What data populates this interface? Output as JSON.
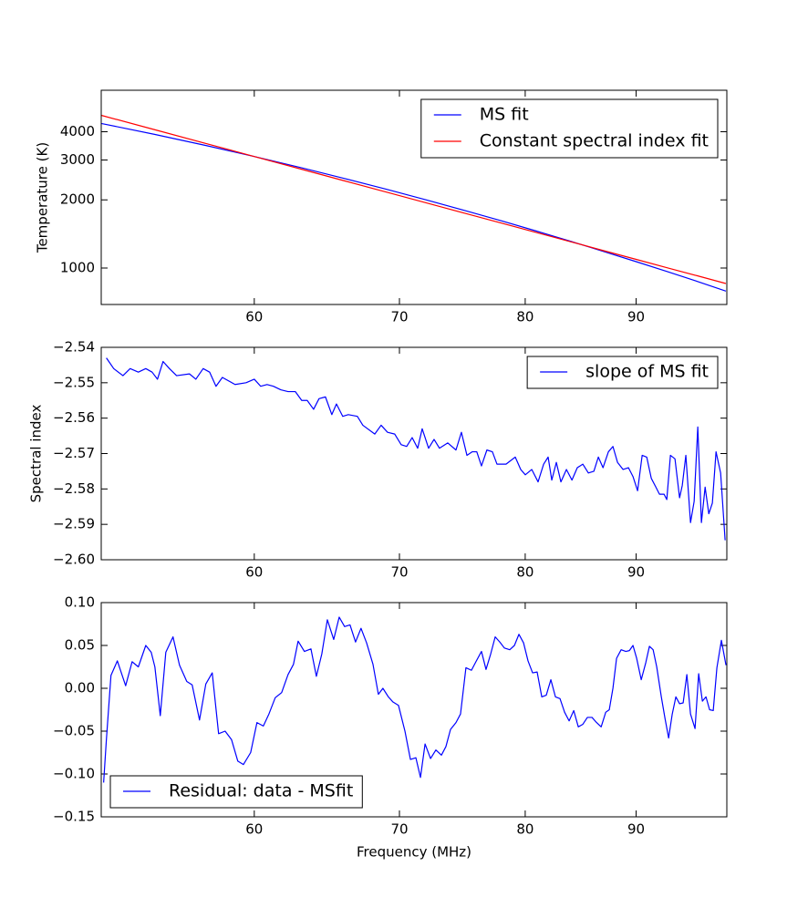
{
  "chart_data": [
    {
      "type": "line",
      "x_scale": "log",
      "y_scale": "log",
      "ylabel": "Temperature (K)",
      "legend": "upper right",
      "x": [
        51,
        54,
        57,
        60,
        63,
        66,
        69,
        72,
        75,
        78,
        81,
        84,
        87,
        90,
        93,
        96,
        99
      ],
      "series": [
        {
          "name": "MS fit",
          "color": "#0000ff",
          "values": [
            4352,
            3890,
            3476,
            3108,
            2781,
            2489,
            2231,
            2001,
            1797,
            1616,
            1454,
            1310,
            1181,
            1067,
            965,
            874,
            791
          ]
        },
        {
          "name": "Constant spectral index fit",
          "color": "#ff0000",
          "values": [
            4727,
            4080,
            3548,
            3108,
            2741,
            2430,
            2167,
            1942,
            1747,
            1580,
            1433,
            1305,
            1191,
            1092,
            1003,
            925,
            854
          ]
        }
      ],
      "xlim": [
        51,
        99.1
      ],
      "xticks": [
        60,
        70,
        80,
        90
      ],
      "ylim": [
        690,
        6100
      ],
      "yticks": [
        1000,
        2000,
        3000,
        4000
      ]
    },
    {
      "type": "line",
      "x_scale": "log",
      "ylabel": "Spectral index",
      "legend": "upper right",
      "x": [
        51.28,
        51.68,
        52.19,
        52.59,
        53.05,
        53.47,
        53.83,
        54.14,
        54.46,
        54.83,
        55.25,
        56.01,
        56.39,
        56.83,
        57.22,
        57.61,
        58.0,
        58.79,
        59.48,
        60.0,
        60.41,
        60.82,
        61.23,
        61.71,
        62.19,
        62.67,
        63.1,
        63.47,
        63.9,
        64.27,
        64.71,
        65.15,
        65.47,
        65.91,
        66.3,
        66.94,
        67.33,
        68.19,
        68.65,
        69.12,
        69.65,
        70.13,
        70.54,
        70.95,
        71.37,
        71.71,
        72.2,
        72.62,
        73.04,
        73.68,
        74.33,
        74.76,
        75.2,
        75.63,
        75.99,
        76.37,
        76.81,
        77.26,
        77.64,
        78.39,
        79.16,
        79.62,
        80.01,
        80.56,
        81.1,
        81.58,
        81.97,
        82.29,
        82.69,
        83.09,
        83.58,
        84.07,
        84.55,
        85.05,
        85.55,
        86.05,
        86.46,
        86.89,
        87.39,
        87.81,
        88.24,
        88.76,
        89.27,
        89.7,
        90.14,
        90.58,
        91.02,
        91.46,
        91.91,
        92.26,
        92.71,
        92.98,
        93.34,
        93.79,
        94.25,
        94.52,
        94.88,
        95.35,
        95.72,
        96.09,
        96.46,
        96.84,
        97.22,
        97.59,
        97.97,
        98.45,
        98.92
      ],
      "series": [
        {
          "name": "slope of MS fit",
          "color": "#0000ff",
          "values": [
            -2.543,
            -2.546,
            -2.548,
            -2.546,
            -2.547,
            -2.546,
            -2.547,
            -2.549,
            -2.544,
            -2.546,
            -2.548,
            -2.5475,
            -2.549,
            -2.546,
            -2.547,
            -2.551,
            -2.5485,
            -2.5505,
            -2.55,
            -2.549,
            -2.551,
            -2.5505,
            -2.551,
            -2.552,
            -2.5525,
            -2.5525,
            -2.555,
            -2.555,
            -2.5575,
            -2.5545,
            -2.554,
            -2.559,
            -2.556,
            -2.5595,
            -2.559,
            -2.5595,
            -2.562,
            -2.5645,
            -2.562,
            -2.564,
            -2.5645,
            -2.5675,
            -2.568,
            -2.5655,
            -2.5685,
            -2.563,
            -2.5685,
            -2.566,
            -2.5685,
            -2.567,
            -2.569,
            -2.564,
            -2.5705,
            -2.5695,
            -2.5695,
            -2.5735,
            -2.569,
            -2.5695,
            -2.573,
            -2.573,
            -2.571,
            -2.5745,
            -2.576,
            -2.5745,
            -2.578,
            -2.573,
            -2.571,
            -2.5775,
            -2.5725,
            -2.578,
            -2.5745,
            -2.5775,
            -2.574,
            -2.573,
            -2.5755,
            -2.575,
            -2.571,
            -2.574,
            -2.5695,
            -2.568,
            -2.5725,
            -2.5745,
            -2.574,
            -2.5765,
            -2.5805,
            -2.5705,
            -2.571,
            -2.577,
            -2.5795,
            -2.5815,
            -2.5815,
            -2.583,
            -2.5705,
            -2.5715,
            -2.5825,
            -2.579,
            -2.5705,
            -2.5895,
            -2.5835,
            -2.5625,
            -2.5895,
            -2.5795,
            -2.587,
            -2.584,
            -2.5695,
            -2.5755,
            -2.5945
          ]
        }
      ],
      "xlim": [
        51,
        99.1
      ],
      "xticks": [
        60,
        70,
        80,
        90
      ],
      "ylim": [
        -2.6,
        -2.54
      ],
      "yticks": [
        {
          "value": -2.6,
          "label": "−2.60"
        },
        {
          "value": -2.59,
          "label": "−2.59"
        },
        {
          "value": -2.58,
          "label": "−2.58"
        },
        {
          "value": -2.57,
          "label": "−2.57"
        },
        {
          "value": -2.56,
          "label": "−2.56"
        },
        {
          "value": -2.55,
          "label": "−2.55"
        },
        {
          "value": -2.54,
          "label": "−2.54"
        }
      ]
    },
    {
      "type": "line",
      "x_scale": "log",
      "xlabel": "Frequency (MHz)",
      "legend": "lower left",
      "x": [
        51.13,
        51.28,
        51.53,
        51.88,
        52.34,
        52.7,
        53.05,
        53.47,
        53.78,
        53.99,
        54.3,
        54.62,
        55.04,
        55.42,
        55.85,
        56.17,
        56.61,
        56.99,
        57.38,
        57.77,
        58.17,
        58.57,
        58.96,
        59.31,
        59.77,
        60.17,
        60.58,
        60.94,
        61.35,
        61.77,
        62.19,
        62.55,
        62.86,
        63.28,
        63.72,
        64.09,
        64.46,
        64.84,
        65.28,
        65.66,
        66.04,
        66.42,
        66.81,
        67.2,
        67.6,
        68.06,
        68.45,
        68.78,
        69.18,
        69.52,
        69.93,
        70.41,
        70.82,
        71.23,
        71.58,
        71.93,
        72.35,
        72.76,
        73.19,
        73.54,
        73.9,
        74.33,
        74.69,
        75.12,
        75.56,
        75.92,
        76.37,
        76.74,
        77.12,
        77.49,
        77.87,
        78.25,
        78.7,
        79.09,
        79.47,
        79.86,
        80.24,
        80.63,
        81.02,
        81.42,
        81.81,
        82.21,
        82.61,
        83.01,
        83.42,
        83.82,
        84.23,
        84.64,
        85.05,
        85.46,
        85.88,
        86.3,
        86.72,
        87.14,
        87.47,
        87.81,
        88.15,
        88.58,
        89.02,
        89.36,
        89.7,
        90.05,
        90.49,
        90.93,
        91.28,
        91.64,
        91.99,
        92.44,
        92.8,
        93.16,
        93.52,
        93.88,
        94.25,
        94.61,
        94.98,
        95.35,
        95.81,
        96.18,
        96.56,
        96.93,
        97.3,
        97.68,
        98.06,
        98.53,
        99.01
      ],
      "series": [
        {
          "name": "Residual: data - MSfit",
          "color": "#0000ff",
          "values": [
            -0.11,
            -0.06,
            0.015,
            0.032,
            0.003,
            0.031,
            0.025,
            0.05,
            0.042,
            0.025,
            -0.032,
            0.042,
            0.06,
            0.027,
            0.008,
            0.004,
            -0.037,
            0.005,
            0.018,
            -0.053,
            -0.05,
            -0.06,
            -0.085,
            -0.089,
            -0.075,
            -0.04,
            -0.044,
            -0.03,
            -0.011,
            -0.005,
            0.016,
            0.028,
            0.055,
            0.043,
            0.046,
            0.014,
            0.04,
            0.08,
            0.057,
            0.083,
            0.072,
            0.074,
            0.054,
            0.07,
            0.053,
            0.028,
            -0.007,
            0.0,
            -0.01,
            -0.016,
            -0.02,
            -0.05,
            -0.083,
            -0.081,
            -0.104,
            -0.065,
            -0.082,
            -0.072,
            -0.078,
            -0.068,
            -0.048,
            -0.04,
            -0.03,
            0.024,
            0.021,
            0.031,
            0.043,
            0.022,
            0.04,
            0.06,
            0.054,
            0.047,
            0.045,
            0.05,
            0.063,
            0.053,
            0.032,
            0.018,
            0.019,
            -0.01,
            -0.008,
            0.01,
            -0.01,
            -0.012,
            -0.028,
            -0.038,
            -0.026,
            -0.045,
            -0.042,
            -0.034,
            -0.034,
            -0.04,
            -0.045,
            -0.028,
            -0.025,
            0.0,
            0.035,
            0.045,
            0.043,
            0.044,
            0.05,
            0.035,
            0.01,
            0.03,
            0.049,
            0.045,
            0.025,
            -0.01,
            -0.035,
            -0.058,
            -0.03,
            -0.01,
            -0.018,
            -0.017,
            0.016,
            -0.03,
            -0.047,
            0.017,
            -0.015,
            -0.01,
            -0.025,
            -0.026,
            0.024,
            0.056,
            0.027
          ]
        }
      ],
      "xlim": [
        51,
        99.1
      ],
      "xticks": [
        60,
        70,
        80,
        90
      ],
      "ylim": [
        -0.15,
        0.1
      ],
      "yticks": [
        {
          "value": -0.15,
          "label": "−0.15"
        },
        {
          "value": -0.1,
          "label": "−0.10"
        },
        {
          "value": -0.05,
          "label": "−0.05"
        },
        {
          "value": 0,
          "label": "0.00"
        },
        0.05,
        {
          "value": 0.1,
          "label": "0.10"
        }
      ]
    }
  ]
}
